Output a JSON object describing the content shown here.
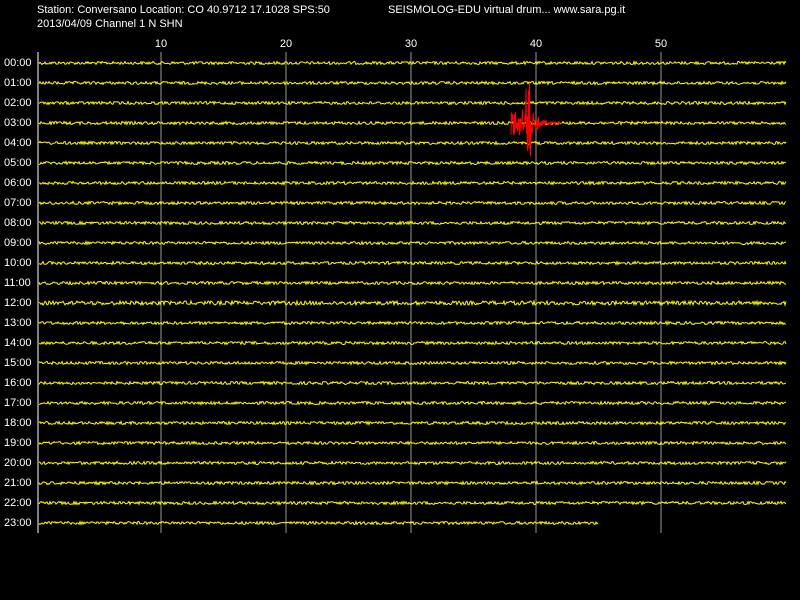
{
  "header": {
    "station": "Station: Conversano Location: CO 40.9712 17.1028 SPS:50",
    "source": "SEISMOLOG-EDU virtual drum... www.sara.pg.it",
    "date_channel": "2013/04/09  Channel 1 N SHN"
  },
  "minute_labels": [
    "10",
    "20",
    "30",
    "40",
    "50"
  ],
  "hour_labels": [
    "00:00",
    "01:00",
    "02:00",
    "03:00",
    "04:00",
    "05:00",
    "06:00",
    "07:00",
    "08:00",
    "09:00",
    "10:00",
    "11:00",
    "12:00",
    "13:00",
    "14:00",
    "15:00",
    "16:00",
    "17:00",
    "18:00",
    "19:00",
    "20:00",
    "21:00",
    "22:00",
    "23:00"
  ]
}
